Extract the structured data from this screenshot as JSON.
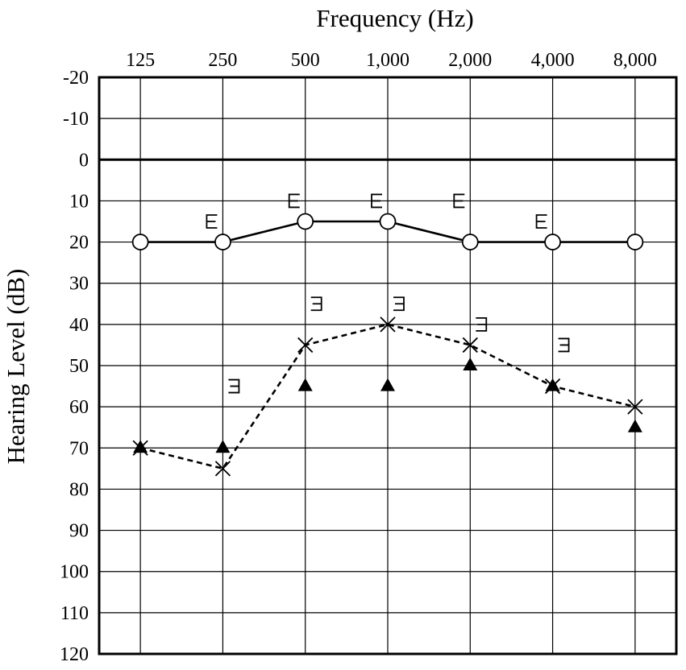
{
  "chart_data": {
    "type": "scatter",
    "xlabel": "Frequency (Hz)",
    "ylabel": "Hearing Level (dB)",
    "x_categories": [
      "125",
      "250",
      "500",
      "1,000",
      "2,000",
      "4,000",
      "8,000"
    ],
    "y_ticks": [
      "-20",
      "-10",
      "0",
      "10",
      "20",
      "30",
      "40",
      "50",
      "60",
      "70",
      "80",
      "90",
      "100",
      "110",
      "120"
    ],
    "ylim": [
      -20,
      120
    ],
    "y_inverted": true,
    "grid": true,
    "series": [
      {
        "marker": "circle",
        "line": "solid",
        "values": [
          20,
          20,
          15,
          15,
          20,
          20,
          20
        ]
      },
      {
        "marker": "bracket-left",
        "line": "none",
        "x_index": [
          1,
          2,
          3,
          4,
          5
        ],
        "values": [
          15,
          10,
          10,
          10,
          15
        ]
      },
      {
        "marker": "x",
        "line": "dashed",
        "values": [
          70,
          75,
          45,
          40,
          45,
          55,
          60
        ]
      },
      {
        "marker": "bracket-right",
        "line": "none",
        "x_index": [
          1,
          2,
          3,
          4,
          5
        ],
        "values": [
          55,
          35,
          35,
          40,
          45
        ]
      },
      {
        "marker": "filled-triangle",
        "line": "none",
        "values": [
          70,
          70,
          55,
          55,
          50,
          55,
          65
        ]
      }
    ]
  }
}
